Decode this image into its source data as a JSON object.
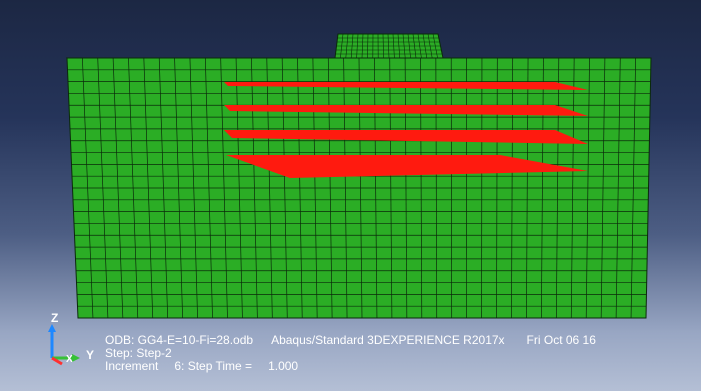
{
  "viewport": {
    "model_color": "#2bad25",
    "mesh_line_color": "#0a2a0a",
    "reinforcement_color": "#ff1a0f",
    "background_top": "#1c2743",
    "background_bottom": "#b4bfd5"
  },
  "triad": {
    "axis_z": "Z",
    "axis_y": "Y",
    "axis_x": "X"
  },
  "info": {
    "odb_line": "ODB: GG4-E=10-Fi=28.odb",
    "solver": "Abaqus/Standard 3DEXPERIENCE R2017x",
    "date": "Fri Oct 06 16",
    "step_line": "Step: Step-2",
    "increment_label": "Increment",
    "increment_value": "6: Step Time =",
    "step_time": "1.000"
  }
}
